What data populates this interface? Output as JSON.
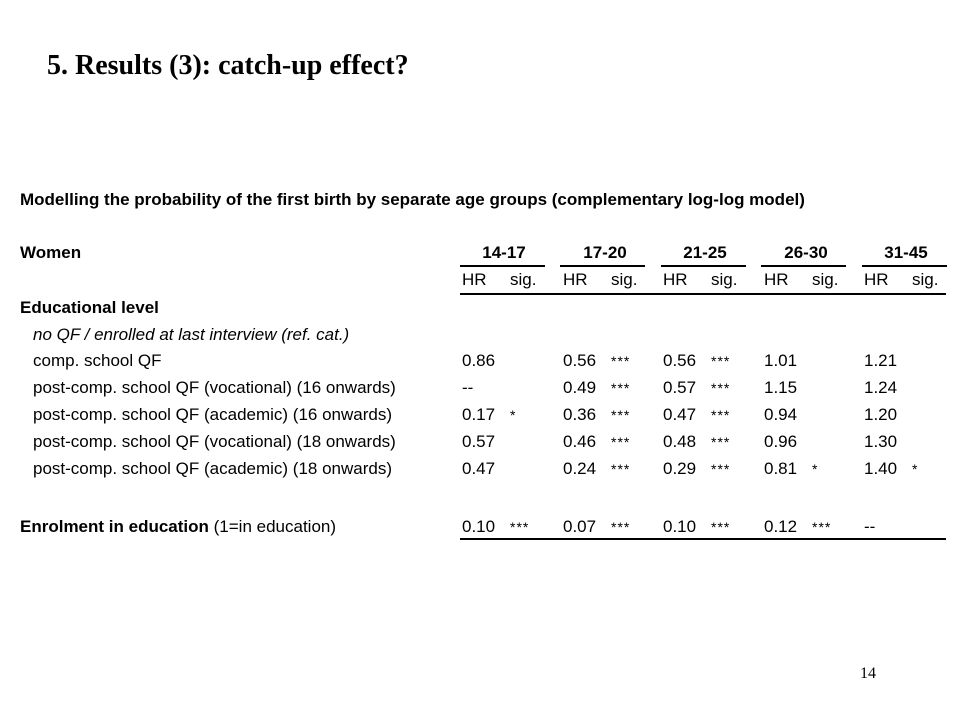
{
  "slide": {
    "title": "5. Results (3): catch-up effect?",
    "page_number": "14"
  },
  "table": {
    "caption": "Modelling the probability of the first birth by separate age groups (complementary log-log model)",
    "group_label": "Women",
    "age_groups": [
      "14-17",
      "17-20",
      "21-25",
      "26-30",
      "31-45"
    ],
    "sub_headers": {
      "hr": "HR",
      "sig": "sig."
    },
    "section_label": "Educational level",
    "reference_label": "no QF / enrolled at last interview (ref. cat.)",
    "rows": [
      {
        "label": "comp. school QF",
        "cells": [
          [
            "0.86",
            ""
          ],
          [
            "0.56",
            "***"
          ],
          [
            "0.56",
            "***"
          ],
          [
            "1.01",
            ""
          ],
          [
            "1.21",
            ""
          ]
        ]
      },
      {
        "label": "post-comp. school QF (vocational) (16 onwards)",
        "cells": [
          [
            "--",
            ""
          ],
          [
            "0.49",
            "***"
          ],
          [
            "0.57",
            "***"
          ],
          [
            "1.15",
            ""
          ],
          [
            "1.24",
            ""
          ]
        ]
      },
      {
        "label": "post-comp. school QF (academic) (16 onwards)",
        "cells": [
          [
            "0.17",
            "*"
          ],
          [
            "0.36",
            "***"
          ],
          [
            "0.47",
            "***"
          ],
          [
            "0.94",
            ""
          ],
          [
            "1.20",
            ""
          ]
        ]
      },
      {
        "label": "post-comp. school QF (vocational) (18 onwards)",
        "cells": [
          [
            "0.57",
            ""
          ],
          [
            "0.46",
            "***"
          ],
          [
            "0.48",
            "***"
          ],
          [
            "0.96",
            ""
          ],
          [
            "1.30",
            ""
          ]
        ]
      },
      {
        "label": "post-comp. school QF (academic) (18 onwards)",
        "cells": [
          [
            "0.47",
            ""
          ],
          [
            "0.24",
            "***"
          ],
          [
            "0.29",
            "***"
          ],
          [
            "0.81",
            "*"
          ],
          [
            "1.40",
            "*"
          ]
        ]
      }
    ],
    "enrolment": {
      "label_bold": "Enrolment in education",
      "label_rest": " (1=in education)",
      "cells": [
        [
          "0.10",
          "***"
        ],
        [
          "0.07",
          "***"
        ],
        [
          "0.10",
          "***"
        ],
        [
          "0.12",
          "***"
        ],
        [
          "--",
          ""
        ]
      ]
    }
  }
}
